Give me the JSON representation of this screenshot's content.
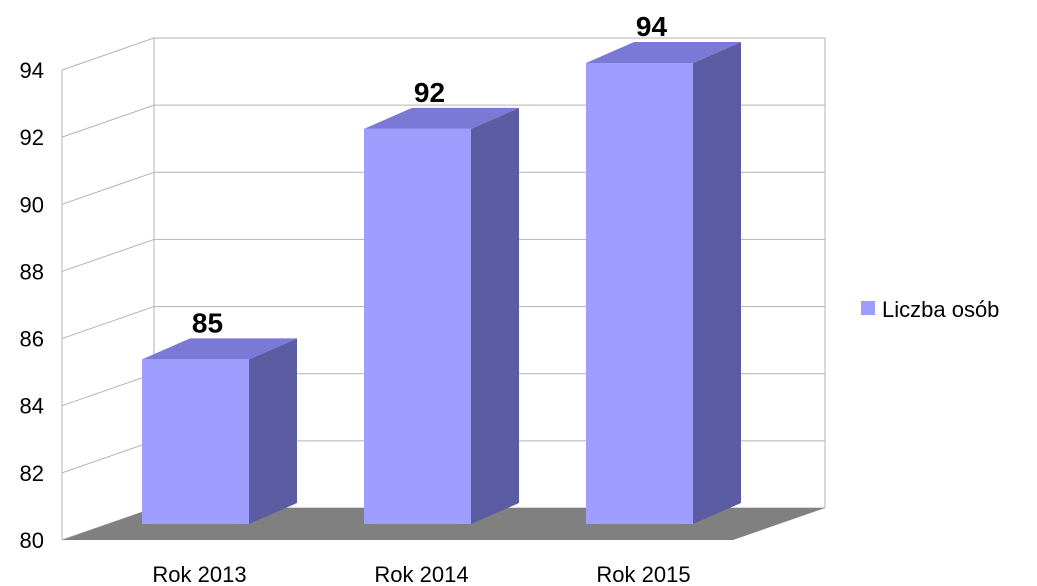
{
  "chart_data": {
    "type": "bar",
    "categories": [
      "Rok 2013",
      "Rok 2014",
      "Rok 2015"
    ],
    "series": [
      {
        "name": "Liczba osób",
        "values": [
          85,
          92,
          94
        ]
      }
    ],
    "title": "",
    "xlabel": "",
    "ylabel": "",
    "ylim": [
      80,
      94
    ],
    "yticks": [
      "80",
      "82",
      "84",
      "86",
      "88",
      "90",
      "92",
      "94"
    ],
    "data_labels": [
      "85",
      "92",
      "94"
    ],
    "grid": true,
    "legend": {
      "position": "right",
      "entries": [
        "Liczba osób"
      ]
    },
    "three_d": true,
    "colors": {
      "bar_front": "#9e9eff",
      "bar_top": "#7a7ad6",
      "bar_side": "#5c5ca3",
      "floor": "#808080",
      "grid": "#b3b3b3",
      "legend_swatch": "#9e9eff"
    }
  }
}
